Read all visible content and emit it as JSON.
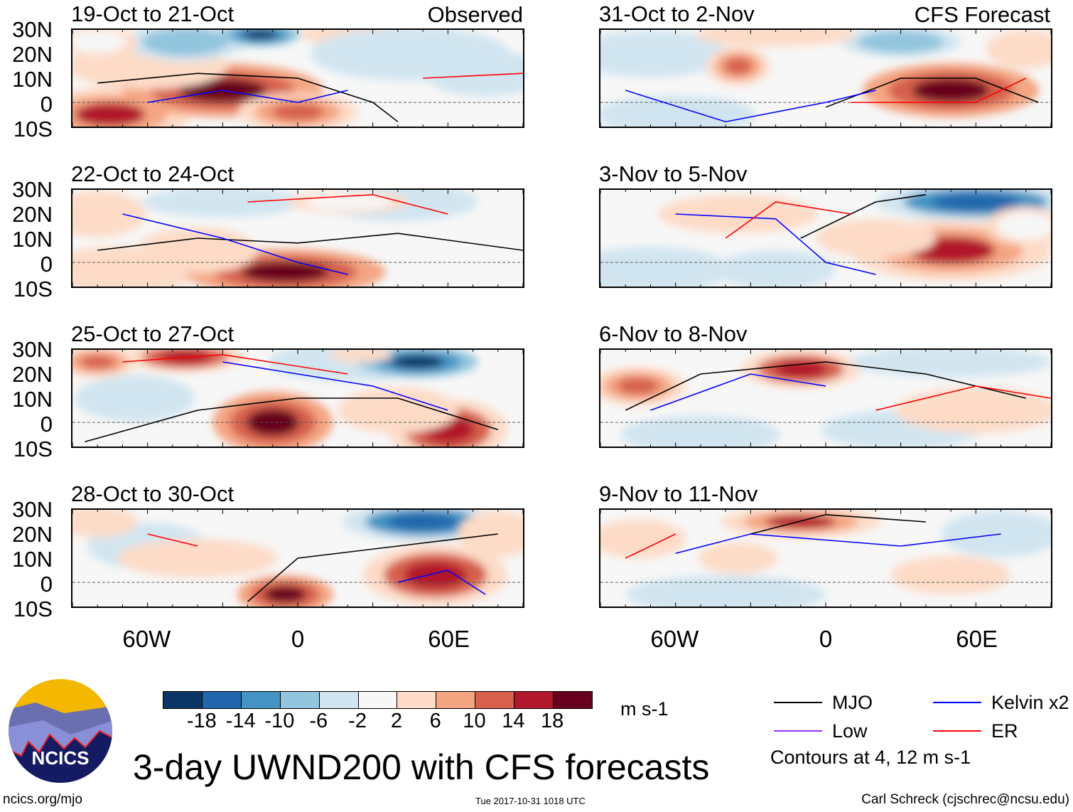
{
  "header": {
    "observed_label": "Observed",
    "forecast_label": "CFS Forecast"
  },
  "lat_labels": [
    "30N",
    "20N",
    "10N",
    "0",
    "10S"
  ],
  "lon_labels": [
    "60W",
    "0",
    "60E"
  ],
  "colors": {
    "scale": [
      "#0a3566",
      "#2166ac",
      "#4393c3",
      "#92c5de",
      "#d1e5f0",
      "#f7f7f7",
      "#fddbc7",
      "#f4a582",
      "#d6604d",
      "#b2182b",
      "#67001f"
    ],
    "MJO": "#000000",
    "Low": "#9b30ff",
    "Kelvin": "#0000ff",
    "ER": "#ff0000"
  },
  "colorbar": {
    "ticks": [
      "-18",
      "-14",
      "-10",
      "-6",
      "-2",
      "2",
      "6",
      "10",
      "14",
      "18"
    ],
    "units": "m s-1"
  },
  "legend": {
    "items": [
      {
        "label": "MJO",
        "key": "MJO"
      },
      {
        "label": "Kelvin x2",
        "key": "Kelvin"
      },
      {
        "label": "Low",
        "key": "Low"
      },
      {
        "label": "ER",
        "key": "ER"
      }
    ],
    "note": "Contours at 4, 12 m s-1"
  },
  "footer": {
    "title": "3-day UWND200 with CFS forecasts",
    "url": "ncics.org/mjo",
    "timestamp": "Tue 2017-10-31 1018 UTC",
    "credit": "Carl Schreck (cjschrec@ncsu.edu)",
    "logo_text": "NCICS"
  },
  "panels": [
    {
      "title": "19-Oct to 21-Oct",
      "blobs": [
        [
          -75,
          -5,
          20,
          7,
          16
        ],
        [
          -30,
          5,
          25,
          7,
          19
        ],
        [
          0,
          -4,
          15,
          5,
          14
        ],
        [
          -60,
          15,
          20,
          6,
          10
        ],
        [
          -45,
          25,
          15,
          5,
          -12
        ],
        [
          -15,
          28,
          10,
          3,
          -18
        ],
        [
          25,
          28,
          15,
          3,
          12
        ],
        [
          45,
          20,
          25,
          7,
          -10
        ],
        [
          75,
          12,
          15,
          6,
          -10
        ],
        [
          -80,
          25,
          10,
          4,
          8
        ]
      ],
      "lines": [
        [
          "MJO",
          [
            [
              -80,
              8
            ],
            [
              -40,
              12
            ],
            [
              0,
              10
            ],
            [
              30,
              0
            ],
            [
              40,
              -8
            ]
          ]
        ],
        [
          "Kelvin",
          [
            [
              -60,
              0
            ],
            [
              -30,
              5
            ],
            [
              0,
              0
            ],
            [
              20,
              5
            ]
          ]
        ],
        [
          "ER",
          [
            [
              50,
              10
            ],
            [
              90,
              12
            ]
          ]
        ]
      ]
    },
    {
      "title": "31-Oct to 2-Nov",
      "blobs": [
        [
          -70,
          20,
          20,
          6,
          -10
        ],
        [
          -35,
          15,
          8,
          5,
          14
        ],
        [
          50,
          5,
          22,
          7,
          19
        ],
        [
          80,
          22,
          10,
          5,
          10
        ],
        [
          30,
          25,
          15,
          4,
          -12
        ],
        [
          -60,
          -5,
          20,
          5,
          -6
        ],
        [
          -20,
          28,
          20,
          3,
          10
        ]
      ],
      "lines": [
        [
          "MJO",
          [
            [
              0,
              -2
            ],
            [
              30,
              10
            ],
            [
              60,
              10
            ],
            [
              85,
              0
            ]
          ]
        ],
        [
          "Kelvin",
          [
            [
              -80,
              5
            ],
            [
              -40,
              -8
            ],
            [
              0,
              0
            ],
            [
              20,
              5
            ]
          ]
        ],
        [
          "ER",
          [
            [
              10,
              0
            ],
            [
              60,
              0
            ],
            [
              80,
              10
            ]
          ]
        ]
      ]
    },
    {
      "title": "22-Oct to 24-Oct",
      "blobs": [
        [
          -70,
          -3,
          20,
          6,
          12
        ],
        [
          -5,
          -4,
          25,
          6,
          19
        ],
        [
          -40,
          5,
          15,
          6,
          10
        ],
        [
          -30,
          25,
          20,
          4,
          -6
        ],
        [
          40,
          25,
          20,
          5,
          -6
        ],
        [
          20,
          25,
          15,
          3,
          8
        ],
        [
          -80,
          20,
          12,
          6,
          6
        ]
      ],
      "lines": [
        [
          "MJO",
          [
            [
              -80,
              5
            ],
            [
              -40,
              10
            ],
            [
              0,
              8
            ],
            [
              40,
              12
            ],
            [
              90,
              5
            ]
          ]
        ],
        [
          "Kelvin",
          [
            [
              -70,
              20
            ],
            [
              -30,
              10
            ],
            [
              0,
              0
            ],
            [
              20,
              -5
            ]
          ]
        ],
        [
          "ER",
          [
            [
              -20,
              25
            ],
            [
              30,
              28
            ],
            [
              60,
              20
            ]
          ]
        ]
      ]
    },
    {
      "title": "3-Nov to 5-Nov",
      "blobs": [
        [
          50,
          5,
          25,
          8,
          16
        ],
        [
          60,
          25,
          25,
          5,
          -16
        ],
        [
          -35,
          20,
          20,
          5,
          10
        ],
        [
          -20,
          -3,
          15,
          5,
          -10
        ],
        [
          -70,
          -3,
          20,
          6,
          -6
        ],
        [
          80,
          15,
          10,
          5,
          8
        ],
        [
          20,
          10,
          15,
          5,
          6
        ]
      ],
      "lines": [
        [
          "MJO",
          [
            [
              -10,
              10
            ],
            [
              20,
              25
            ],
            [
              40,
              28
            ]
          ]
        ],
        [
          "Kelvin",
          [
            [
              -60,
              20
            ],
            [
              -20,
              18
            ],
            [
              0,
              0
            ],
            [
              20,
              -5
            ]
          ]
        ],
        [
          "ER",
          [
            [
              -40,
              10
            ],
            [
              -20,
              25
            ],
            [
              10,
              20
            ]
          ]
        ]
      ]
    },
    {
      "title": "25-Oct to 27-Oct",
      "blobs": [
        [
          -45,
          27,
          15,
          4,
          18
        ],
        [
          -80,
          25,
          10,
          4,
          14
        ],
        [
          20,
          25,
          20,
          5,
          -10
        ],
        [
          48,
          25,
          15,
          4,
          -18
        ],
        [
          -10,
          0,
          15,
          8,
          19
        ],
        [
          60,
          -3,
          15,
          8,
          18
        ],
        [
          40,
          5,
          15,
          6,
          10
        ],
        [
          -65,
          10,
          15,
          6,
          -6
        ],
        [
          25,
          28,
          8,
          2,
          12
        ]
      ],
      "lines": [
        [
          "MJO",
          [
            [
              -85,
              -8
            ],
            [
              -40,
              5
            ],
            [
              0,
              10
            ],
            [
              40,
              10
            ],
            [
              80,
              -3
            ]
          ]
        ],
        [
          "Kelvin",
          [
            [
              -30,
              25
            ],
            [
              0,
              20
            ],
            [
              30,
              15
            ],
            [
              60,
              5
            ]
          ]
        ],
        [
          "ER",
          [
            [
              -70,
              25
            ],
            [
              -30,
              28
            ],
            [
              20,
              20
            ]
          ]
        ]
      ]
    },
    {
      "title": "6-Nov to 8-Nov",
      "blobs": [
        [
          -75,
          15,
          12,
          5,
          14
        ],
        [
          -10,
          22,
          15,
          5,
          18
        ],
        [
          50,
          25,
          25,
          4,
          -10
        ],
        [
          -50,
          -5,
          20,
          5,
          -6
        ],
        [
          30,
          -3,
          20,
          5,
          -6
        ],
        [
          60,
          5,
          20,
          6,
          6
        ]
      ],
      "lines": [
        [
          "MJO",
          [
            [
              -80,
              5
            ],
            [
              -50,
              20
            ],
            [
              0,
              25
            ],
            [
              40,
              20
            ],
            [
              80,
              10
            ]
          ]
        ],
        [
          "Kelvin",
          [
            [
              -70,
              5
            ],
            [
              -30,
              20
            ],
            [
              0,
              15
            ]
          ]
        ],
        [
          "ER",
          [
            [
              20,
              5
            ],
            [
              60,
              15
            ],
            [
              90,
              10
            ]
          ]
        ]
      ]
    },
    {
      "title": "28-Oct to 30-Oct",
      "blobs": [
        [
          55,
          3,
          18,
          8,
          18
        ],
        [
          -5,
          -5,
          12,
          5,
          19
        ],
        [
          50,
          25,
          20,
          5,
          -16
        ],
        [
          -60,
          15,
          15,
          6,
          -8
        ],
        [
          -40,
          10,
          20,
          5,
          6
        ],
        [
          80,
          20,
          10,
          6,
          10
        ],
        [
          -80,
          25,
          10,
          4,
          10
        ]
      ],
      "lines": [
        [
          "MJO",
          [
            [
              -20,
              -8
            ],
            [
              0,
              10
            ],
            [
              40,
              15
            ],
            [
              80,
              20
            ]
          ]
        ],
        [
          "Kelvin",
          [
            [
              40,
              0
            ],
            [
              60,
              5
            ],
            [
              75,
              -5
            ]
          ]
        ],
        [
          "ER",
          [
            [
              -60,
              20
            ],
            [
              -40,
              15
            ]
          ]
        ]
      ]
    },
    {
      "title": "9-Nov to 11-Nov",
      "blobs": [
        [
          -10,
          25,
          20,
          4,
          16
        ],
        [
          -75,
          18,
          12,
          5,
          12
        ],
        [
          -40,
          -5,
          25,
          5,
          -10
        ],
        [
          70,
          20,
          15,
          6,
          -6
        ],
        [
          50,
          3,
          15,
          5,
          6
        ],
        [
          -35,
          10,
          10,
          4,
          6
        ]
      ],
      "lines": [
        [
          "MJO",
          [
            [
              -30,
              20
            ],
            [
              0,
              28
            ],
            [
              40,
              25
            ]
          ]
        ],
        [
          "Kelvin",
          [
            [
              -60,
              12
            ],
            [
              -30,
              20
            ],
            [
              30,
              15
            ],
            [
              70,
              20
            ]
          ]
        ],
        [
          "ER",
          [
            [
              -80,
              10
            ],
            [
              -60,
              20
            ]
          ]
        ]
      ]
    }
  ]
}
